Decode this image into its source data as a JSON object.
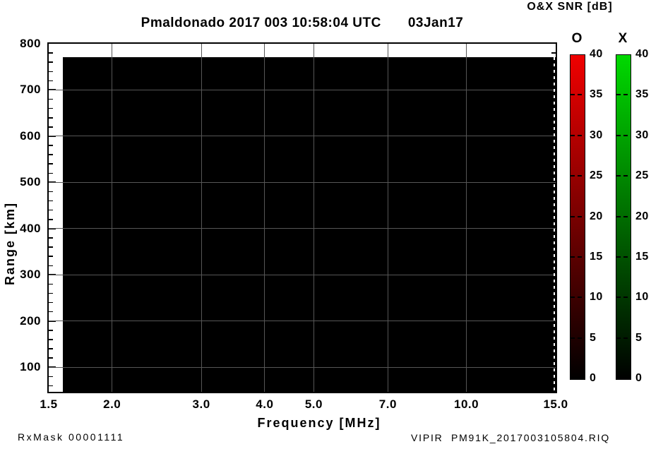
{
  "header": {
    "title": "Pmaldonado 2017 003 10:58:04 UTC",
    "date": "03Jan17"
  },
  "colorbar_panel": {
    "title": "O&X SNR [dB]",
    "bars": [
      {
        "label": "O",
        "color_top": "#f00000",
        "color_bottom": "#000000",
        "min": 0,
        "max": 40,
        "tick_step": 5,
        "tick_labels": [
          "40",
          "35",
          "30",
          "25",
          "20",
          "15",
          "10",
          "5",
          "0"
        ]
      },
      {
        "label": "X",
        "color_top": "#00d900",
        "color_bottom": "#000000",
        "min": 0,
        "max": 40,
        "tick_step": 5,
        "tick_labels": [
          "40",
          "35",
          "30",
          "25",
          "20",
          "15",
          "10",
          "5",
          "0"
        ]
      }
    ]
  },
  "x_axis": {
    "label": "Frequency [MHz]",
    "scale": "log",
    "lim": [
      1.5,
      15.0
    ],
    "ticks": [
      1.5,
      2.0,
      3.0,
      4.0,
      5.0,
      7.0,
      10.0,
      15.0
    ],
    "tick_labels": [
      "1.5",
      "2.0",
      "3.0",
      "4.0",
      "5.0",
      "7.0",
      "10.0",
      "15.0"
    ]
  },
  "y_axis": {
    "label": "Range [km]",
    "lim": [
      47,
      800
    ],
    "major_step": 100,
    "minor_step": 20,
    "ticks": [
      800,
      700,
      600,
      500,
      400,
      300,
      200,
      100
    ],
    "tick_labels": [
      "800",
      "700",
      "600",
      "500",
      "400",
      "300",
      "200",
      "100"
    ]
  },
  "footer": {
    "rx_mask": "RxMask 00001111",
    "file": "VIPIR  PM91K_2017003105804.RIQ"
  },
  "colors": {
    "grid": "#565656",
    "data_background": "#000000",
    "o_bar_top": "#f00000",
    "x_bar_top": "#00d900"
  },
  "chart_data": {
    "type": "heatmap",
    "title": "Pmaldonado 2017 003 10:58:04 UTC 03Jan17",
    "xlabel": "Frequency [MHz]",
    "ylabel": "Range [km]",
    "x_scale": "log",
    "xlim": [
      1.5,
      15.0
    ],
    "x_ticks": [
      1.5,
      2.0,
      3.0,
      4.0,
      5.0,
      7.0,
      10.0,
      15.0
    ],
    "ylim": [
      47,
      800
    ],
    "y_ticks": [
      100,
      200,
      300,
      400,
      500,
      600,
      700,
      800
    ],
    "grid": true,
    "legend_position": "right colorbars",
    "colorbar": {
      "label": "O&X SNR [dB]",
      "range": [
        0,
        40
      ],
      "tick_step": 5,
      "o_polarization": "red-to-black gradient",
      "x_polarization": "green-to-black gradient"
    },
    "data_region_extent": {
      "freq_mhz": [
        1.61,
        15.0
      ],
      "range_km": [
        50,
        768
      ]
    },
    "series": [
      {
        "name": "O-mode echoes",
        "points": [],
        "note": "no echoes above threshold; data region uniformly black (SNR ~ 0 dB)"
      },
      {
        "name": "X-mode echoes",
        "points": [],
        "note": "no echoes above threshold; data region uniformly black (SNR ~ 0 dB)"
      }
    ]
  }
}
